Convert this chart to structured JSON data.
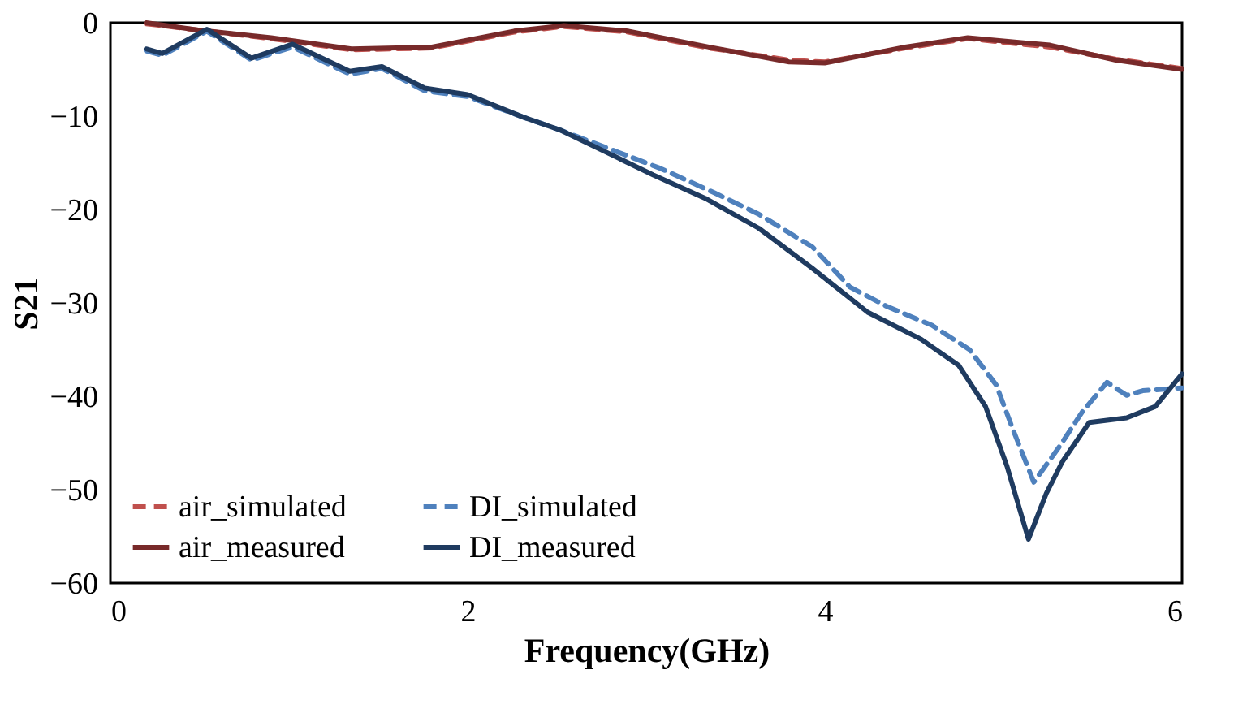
{
  "chart_data": {
    "type": "line",
    "xlabel": "Frequency(GHz)",
    "ylabel": "S21",
    "xlim": [
      0,
      6
    ],
    "ylim": [
      -60,
      0
    ],
    "xticks": [
      0,
      2,
      4,
      6
    ],
    "yticks": [
      -60,
      -50,
      -40,
      -30,
      -20,
      -10,
      0
    ],
    "grid": false,
    "legend": "bottom left",
    "marker": "none",
    "series": [
      {
        "name": "air_simulated",
        "color": "#c0504d",
        "line_style": "dashed",
        "x": [
          0.2,
          0.5,
          0.9,
          1.35,
          1.8,
          2.26,
          2.54,
          2.9,
          3.35,
          3.8,
          4.0,
          4.45,
          4.8,
          5.26,
          5.63,
          6.0
        ],
        "values": [
          -0.1,
          -0.8,
          -1.7,
          -2.9,
          -2.7,
          -1.0,
          -0.4,
          -1.0,
          -2.7,
          -4.0,
          -4.2,
          -2.7,
          -1.7,
          -2.6,
          -3.9,
          -4.9
        ]
      },
      {
        "name": "air_measured",
        "color": "#782a2a",
        "line_style": "solid",
        "x": [
          0.2,
          0.5,
          0.9,
          1.35,
          1.8,
          2.26,
          2.54,
          2.9,
          3.35,
          3.8,
          4.0,
          4.45,
          4.8,
          5.26,
          5.63,
          6.0
        ],
        "values": [
          0.0,
          -0.8,
          -1.6,
          -2.8,
          -2.6,
          -0.9,
          -0.3,
          -0.9,
          -2.6,
          -4.2,
          -4.3,
          -2.6,
          -1.6,
          -2.4,
          -4.0,
          -5.0
        ]
      },
      {
        "name": "DI_simulated",
        "color": "#4f81bd",
        "line_style": "dashed",
        "x": [
          0.2,
          0.29,
          0.54,
          0.79,
          1.02,
          1.34,
          1.52,
          1.76,
          2.0,
          2.31,
          2.52,
          3.08,
          3.38,
          3.63,
          3.93,
          4.14,
          4.35,
          4.6,
          4.81,
          4.96,
          5.05,
          5.17,
          5.32,
          5.44,
          5.58,
          5.69,
          5.78,
          6.0
        ],
        "values": [
          -3.0,
          -3.5,
          -0.9,
          -4.0,
          -2.6,
          -5.5,
          -4.9,
          -7.3,
          -7.9,
          -10.1,
          -11.5,
          -15.6,
          -18.2,
          -20.5,
          -24.0,
          -28.3,
          -30.4,
          -32.4,
          -35.0,
          -38.8,
          -43.4,
          -49.2,
          -45.2,
          -41.7,
          -38.5,
          -39.9,
          -39.4,
          -39.1
        ]
      },
      {
        "name": "DI_measured",
        "color": "#1f3b60",
        "line_style": "solid",
        "x": [
          0.2,
          0.29,
          0.54,
          0.79,
          1.02,
          1.34,
          1.52,
          1.76,
          2.0,
          2.31,
          2.52,
          3.04,
          3.33,
          3.63,
          3.93,
          4.24,
          4.54,
          4.75,
          4.9,
          5.02,
          5.14,
          5.24,
          5.33,
          5.48,
          5.69,
          5.85,
          6.0
        ],
        "values": [
          -2.8,
          -3.3,
          -0.7,
          -3.8,
          -2.3,
          -5.2,
          -4.7,
          -7.0,
          -7.7,
          -10.1,
          -11.5,
          -16.3,
          -18.8,
          -22.0,
          -26.3,
          -31.0,
          -33.9,
          -36.7,
          -41.1,
          -47.5,
          -55.3,
          -50.4,
          -47.0,
          -42.8,
          -42.3,
          -41.1,
          -37.6
        ]
      }
    ]
  }
}
